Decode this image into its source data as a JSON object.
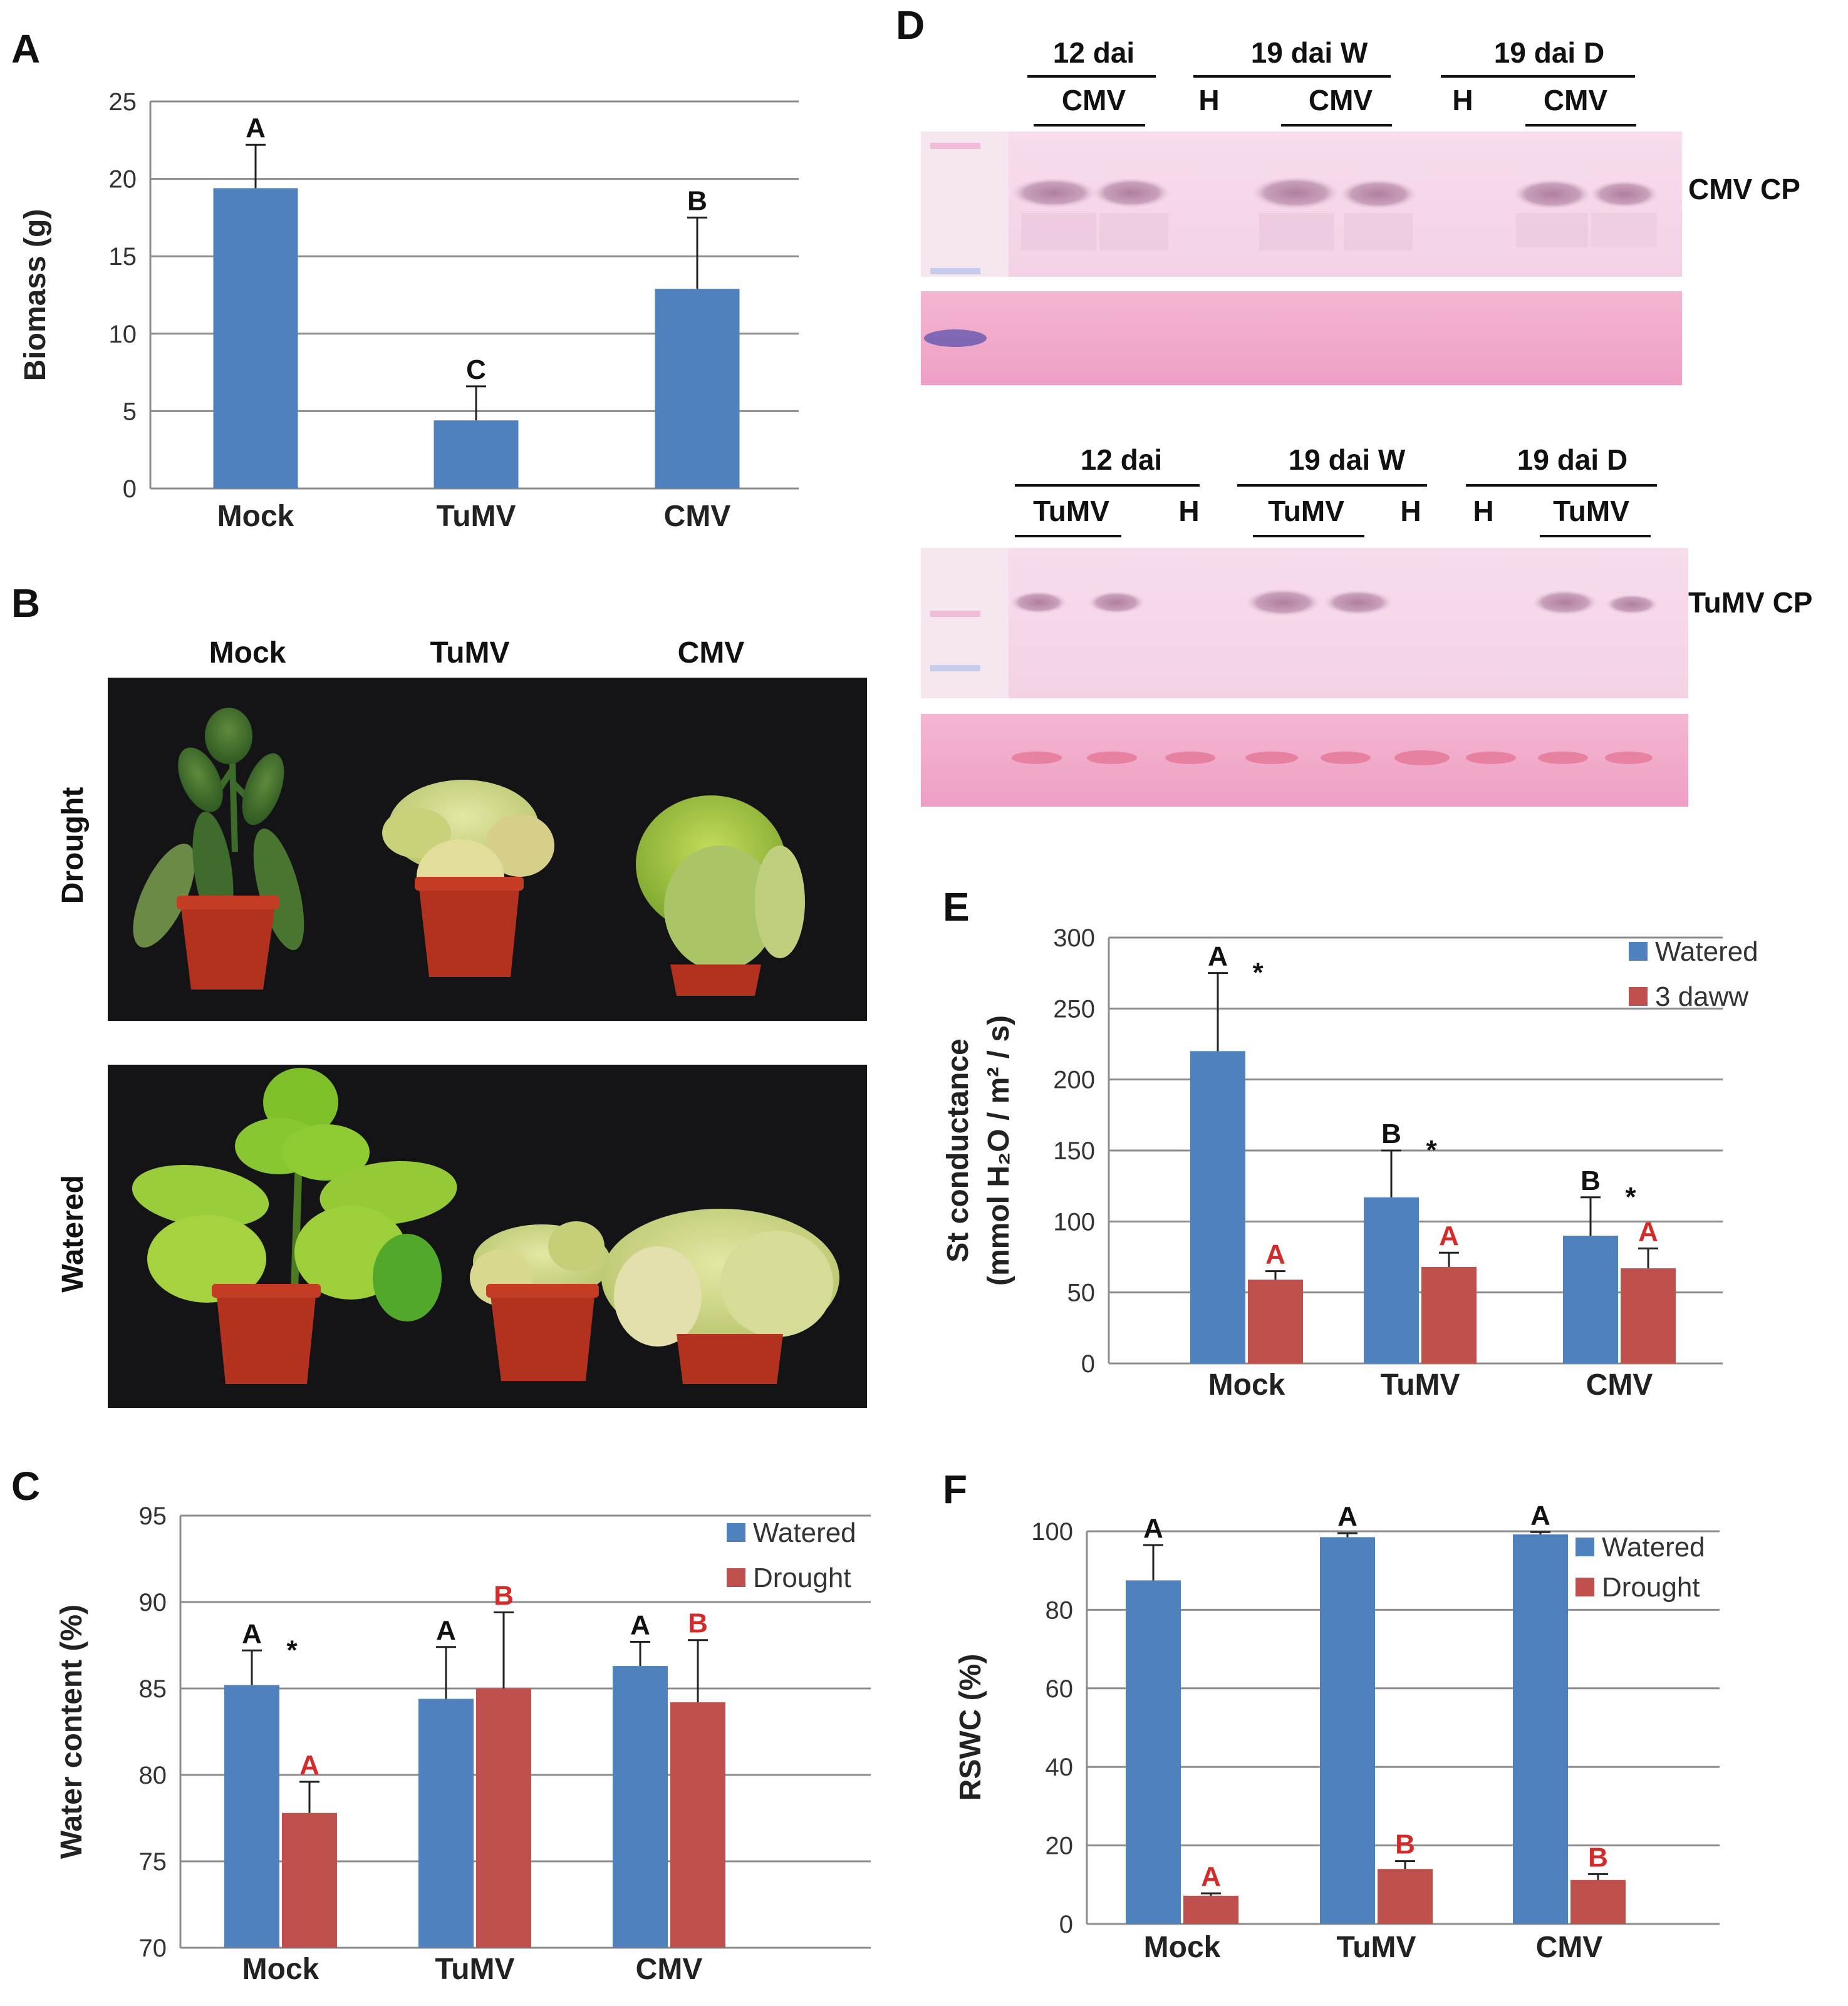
{
  "panels": {
    "A": "A",
    "B": "B",
    "C": "C",
    "D": "D",
    "E": "E",
    "F": "F"
  },
  "colors": {
    "watered": "#4f81bd",
    "drought": "#c0504d",
    "grid": "#8c8c8c",
    "sig_black": "#111111",
    "sig_red": "#d42a2a"
  },
  "chart_data": [
    {
      "id": "A",
      "type": "bar",
      "categories": [
        "Mock",
        "TuMV",
        "CMV"
      ],
      "series": [
        {
          "name": "Biomass",
          "values": [
            19.4,
            4.4,
            12.9
          ],
          "errors": [
            2.8,
            2.2,
            4.6
          ],
          "letters": [
            "A",
            "C",
            "B"
          ]
        }
      ],
      "ylabel": "Biomass (g)",
      "ylim": [
        0,
        25
      ],
      "yticks": [
        0,
        5,
        10,
        15,
        20,
        25
      ]
    },
    {
      "id": "C",
      "type": "bar",
      "categories": [
        "Mock",
        "TuMV",
        "CMV"
      ],
      "series": [
        {
          "name": "Watered",
          "values": [
            85.2,
            84.4,
            86.3
          ],
          "errors": [
            2.0,
            3.0,
            1.4
          ],
          "letters": [
            "A",
            "A",
            "A"
          ],
          "stars": [
            "*",
            "",
            ""
          ]
        },
        {
          "name": "Drought",
          "values": [
            77.8,
            85.0,
            84.2
          ],
          "errors": [
            1.8,
            4.4,
            3.6
          ],
          "letters": [
            "A",
            "B",
            "B"
          ]
        }
      ],
      "ylabel": "Water content (%)",
      "ylim": [
        70,
        95
      ],
      "yticks": [
        70,
        75,
        80,
        85,
        90,
        95
      ]
    },
    {
      "id": "E",
      "type": "bar",
      "categories": [
        "Mock",
        "TuMV",
        "CMV"
      ],
      "series": [
        {
          "name": "Watered",
          "values": [
            220,
            117,
            90
          ],
          "errors": [
            55,
            33,
            27
          ],
          "letters": [
            "A",
            "B",
            "B"
          ],
          "stars": [
            "*",
            "*",
            "*"
          ]
        },
        {
          "name": "3 daww",
          "values": [
            59,
            68,
            67
          ],
          "errors": [
            6,
            10,
            14
          ],
          "letters": [
            "A",
            "A",
            "A"
          ]
        }
      ],
      "ylabel_line1": "St conductance",
      "ylabel_line2": "(mmol H₂O / m² / s)",
      "ylim": [
        0,
        300
      ],
      "yticks": [
        0,
        50,
        100,
        150,
        200,
        250,
        300
      ]
    },
    {
      "id": "F",
      "type": "bar",
      "categories": [
        "Mock",
        "TuMV",
        "CMV"
      ],
      "series": [
        {
          "name": "Watered",
          "values": [
            87.5,
            98.5,
            99.2
          ],
          "errors": [
            9.0,
            1.0,
            0.6
          ],
          "letters": [
            "A",
            "A",
            "A"
          ]
        },
        {
          "name": "Drought",
          "values": [
            7.2,
            14.0,
            11.2
          ],
          "errors": [
            0.6,
            2.0,
            1.5
          ],
          "letters": [
            "A",
            "B",
            "B"
          ]
        }
      ],
      "ylabel": "RSWC (%)",
      "ylim": [
        0,
        100
      ],
      "yticks": [
        0,
        20,
        40,
        60,
        80,
        100
      ]
    }
  ],
  "panel_b": {
    "columns": [
      "Mock",
      "TuMV",
      "CMV"
    ],
    "rows": [
      "Drought",
      "Watered"
    ]
  },
  "panel_d": {
    "top": {
      "groups": [
        "12 dai",
        "19 dai W",
        "19 dai D"
      ],
      "lanes": [
        "CMV",
        "H",
        "CMV",
        "H",
        "CMV"
      ],
      "label": "CMV CP"
    },
    "bottom": {
      "groups": [
        "12 dai",
        "19 dai W",
        "19 dai D"
      ],
      "lanes": [
        "TuMV",
        "H",
        "TuMV",
        "H",
        "H",
        "TuMV"
      ],
      "label": "TuMV CP"
    }
  }
}
